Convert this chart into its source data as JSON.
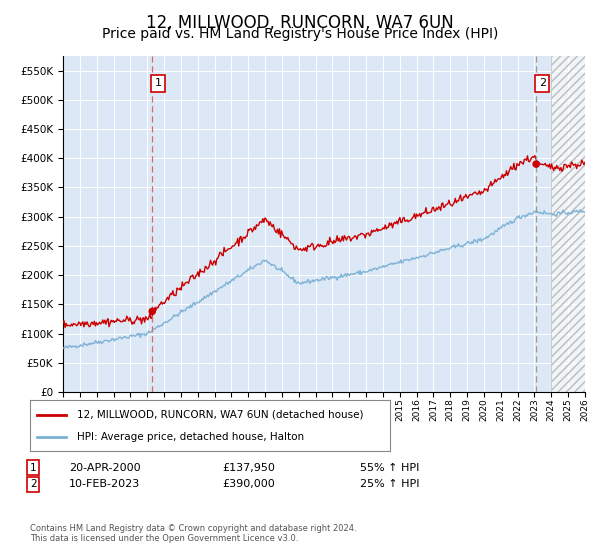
{
  "title": "12, MILLWOOD, RUNCORN, WA7 6UN",
  "subtitle": "Price paid vs. HM Land Registry's House Price Index (HPI)",
  "ylim": [
    0,
    575000
  ],
  "yticks": [
    0,
    50000,
    100000,
    150000,
    200000,
    250000,
    300000,
    350000,
    400000,
    450000,
    500000,
    550000
  ],
  "ytick_labels": [
    "£0",
    "£50K",
    "£100K",
    "£150K",
    "£200K",
    "£250K",
    "£300K",
    "£350K",
    "£400K",
    "£450K",
    "£500K",
    "£550K"
  ],
  "plot_bg_color": "#dce8f5",
  "grid_color": "#ffffff",
  "title_fontsize": 12,
  "subtitle_fontsize": 10,
  "sale1_date": 2000.3,
  "sale1_price": 137950,
  "sale1_label": "1",
  "sale2_date": 2023.1,
  "sale2_price": 390000,
  "sale2_label": "2",
  "legend_line1": "12, MILLWOOD, RUNCORN, WA7 6UN (detached house)",
  "legend_line2": "HPI: Average price, detached house, Halton",
  "footnote": "Contains HM Land Registry data © Crown copyright and database right 2024.\nThis data is licensed under the Open Government Licence v3.0.",
  "line_color_red": "#cc0000",
  "line_color_blue": "#7aafd4",
  "xmin": 1995,
  "xmax": 2026,
  "hatch_start": 2024.0
}
